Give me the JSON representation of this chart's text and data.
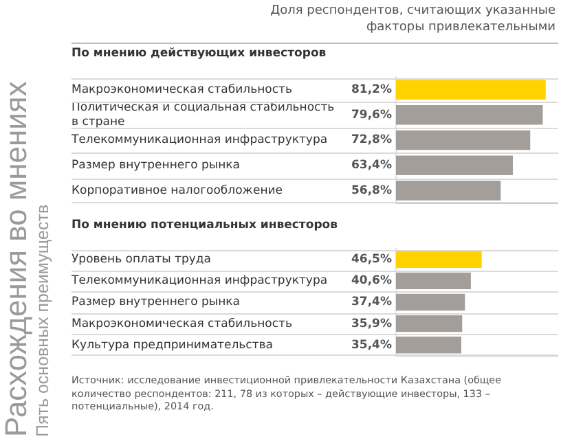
{
  "chart_data": [
    {
      "type": "bar",
      "orientation": "horizontal",
      "title": "Расхождения во мнениях",
      "subtitle": "Пять основных преимуществ",
      "xlabel": "Доля респондентов, считающих указанные факторы привлекательными",
      "annotations": [
        "По мнению действующих инвесторов"
      ],
      "categories": [
        "Макроэкономическая стабильность",
        "Политическая и социальная стабильность в стране",
        "Телекоммуникационная инфраструктура",
        "Размер внутреннего рынка",
        "Корпоративное налогообложение"
      ],
      "values": [
        81.2,
        79.6,
        72.8,
        63.4,
        56.8
      ],
      "value_labels": [
        "81,2%",
        "79,6%",
        "72,8%",
        "63,4%",
        "56,8%"
      ],
      "colors": [
        "#ffd200",
        "#a39e99",
        "#a39e99",
        "#a39e99",
        "#a39e99"
      ],
      "xlim": [
        0,
        88
      ],
      "tick_labels": "y",
      "grid": "y"
    },
    {
      "type": "bar",
      "orientation": "horizontal",
      "annotations": [
        "По мнению потенциальных инвесторов",
        "Источник: исследование инвестиционной привлекательности Казахстана (общее количество респондентов: 211, 78 из которых – действующие инвесторы, 133 – потенциальные), 2014 год."
      ],
      "categories": [
        "Уровень оплаты труда",
        "Телекоммуникационная инфраструктура",
        "Размер внутреннего рынка",
        "Макроэкономическая стабильность",
        "Культура предпринимательства"
      ],
      "values": [
        46.5,
        40.6,
        37.4,
        35.9,
        35.4
      ],
      "value_labels": [
        "46,5%",
        "40,6%",
        "37,4%",
        "35,9%",
        "35,4%"
      ],
      "colors": [
        "#ffd200",
        "#a39e99",
        "#a39e99",
        "#a39e99",
        "#a39e99"
      ],
      "xlim": [
        0,
        88
      ],
      "tick_labels": "y",
      "grid": "y"
    }
  ]
}
